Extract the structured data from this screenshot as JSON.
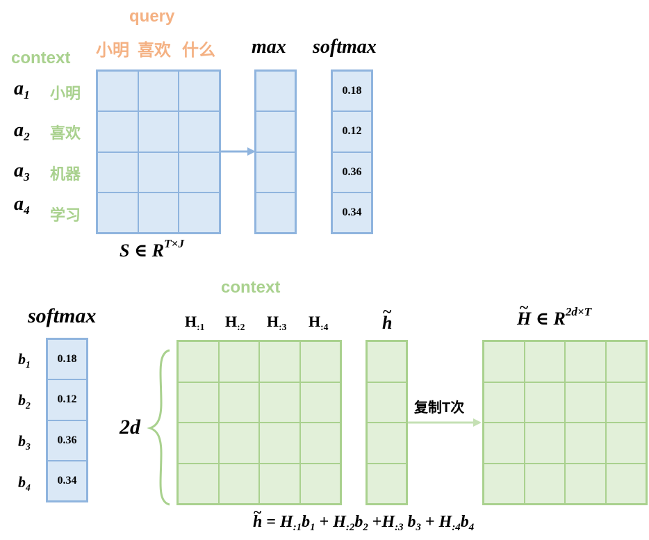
{
  "top": {
    "query_label": "query",
    "query_words": [
      "小明",
      "喜欢",
      "什么"
    ],
    "context_label": "context",
    "row_vars": [
      "a",
      "a",
      "a",
      "a"
    ],
    "row_subs": [
      "1",
      "2",
      "3",
      "4"
    ],
    "context_words": [
      "小明",
      "喜欢",
      "机器",
      "学习"
    ],
    "max_label": "max",
    "softmax_label": "softmax",
    "softmax_values": [
      "0.18",
      "0.12",
      "0.36",
      "0.34"
    ],
    "matrix_caption": {
      "var": "S",
      "in": " ∈ ",
      "space": "R",
      "sup": "T×J"
    }
  },
  "bottom": {
    "context_label": "context",
    "softmax_label": "softmax",
    "row_vars": [
      "b",
      "b",
      "b",
      "b"
    ],
    "row_subs": [
      "1",
      "2",
      "3",
      "4"
    ],
    "softmax_values": [
      "0.18",
      "0.12",
      "0.36",
      "0.34"
    ],
    "col_headers": [
      {
        "base": "H",
        "sub": ":1"
      },
      {
        "base": "H",
        "sub": ":2"
      },
      {
        "base": "H",
        "sub": ":3"
      },
      {
        "base": "H",
        "sub": ":4"
      }
    ],
    "h_tilde_label": "h",
    "H_tilde_label": {
      "var": "H",
      "in": " ∈ ",
      "space": "R",
      "sup": "2d×T"
    },
    "dim_label": "2d",
    "copy_label": "复制T次",
    "formula": {
      "lhs": "h",
      "eq": " = ",
      "terms": [
        "H",
        "b",
        " + ",
        "H",
        "b",
        " +",
        "H",
        "b",
        " + ",
        "H",
        "b"
      ],
      "subs": [
        ":1",
        "1",
        "",
        ":2",
        "2",
        "",
        ":3",
        "3",
        "",
        ":4",
        "4"
      ]
    }
  },
  "colors": {
    "blue_fill": "#dae8f6",
    "blue_border": "#8fb4de",
    "green_fill": "#e2f0d9",
    "green_border": "#a9d18e",
    "orange_text": "#f4b183",
    "green_text": "#a9d18e"
  }
}
